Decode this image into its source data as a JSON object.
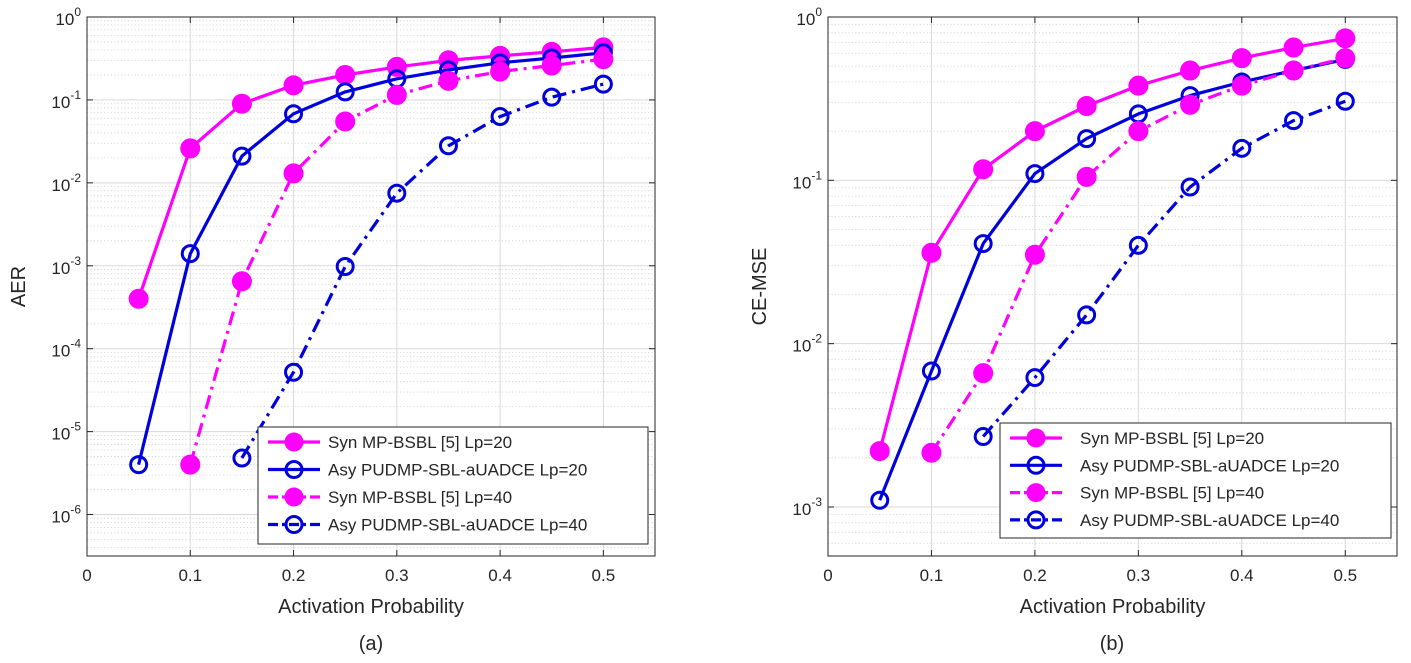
{
  "colors": {
    "magenta": "#ff00ff",
    "blue": "#0000dd",
    "axis": "#262626",
    "grid": "#d9d9d9"
  },
  "chart_data": [
    {
      "type": "line",
      "panel_label": "(a)",
      "xlabel": "Activation Probability",
      "ylabel": "AER",
      "yscale": "log",
      "xlim": [
        0,
        0.55
      ],
      "ylim_exp": [
        -6.5,
        0
      ],
      "xticks": [
        "0",
        "0.1",
        "0.2",
        "0.3",
        "0.4",
        "0.5"
      ],
      "yticks": [
        {
          "base": "10",
          "exp": "0"
        },
        {
          "base": "10",
          "exp": "-1"
        },
        {
          "base": "10",
          "exp": "-2"
        },
        {
          "base": "10",
          "exp": "-3"
        },
        {
          "base": "10",
          "exp": "-4"
        },
        {
          "base": "10",
          "exp": "-5"
        },
        {
          "base": "10",
          "exp": "-6"
        }
      ],
      "legend_position": "bottom-right",
      "series": [
        {
          "name": "Syn MP-BSBL [5] Lp=20",
          "color": "#ff00ff",
          "style": "solid",
          "marker": "filled",
          "x": [
            0.05,
            0.1,
            0.15,
            0.2,
            0.25,
            0.3,
            0.35,
            0.4,
            0.45,
            0.5
          ],
          "y": [
            0.0004,
            0.026,
            0.09,
            0.15,
            0.2,
            0.25,
            0.3,
            0.34,
            0.38,
            0.43
          ]
        },
        {
          "name": "Asy PUDMP-SBL-aUADCE Lp=20",
          "color": "#0000dd",
          "style": "solid",
          "marker": "open",
          "x": [
            0.05,
            0.1,
            0.15,
            0.2,
            0.25,
            0.3,
            0.35,
            0.4,
            0.45,
            0.5
          ],
          "y": [
            4e-06,
            0.0014,
            0.021,
            0.068,
            0.125,
            0.18,
            0.23,
            0.28,
            0.32,
            0.37
          ]
        },
        {
          "name": "Syn MP-BSBL [5] Lp=40",
          "color": "#ff00ff",
          "style": "dashdot",
          "marker": "filled",
          "x": [
            0.1,
            0.15,
            0.2,
            0.25,
            0.3,
            0.35,
            0.4,
            0.45,
            0.5
          ],
          "y": [
            4e-06,
            0.00065,
            0.013,
            0.055,
            0.115,
            0.17,
            0.22,
            0.26,
            0.31
          ]
        },
        {
          "name": "Asy PUDMP-SBL-aUADCE Lp=40",
          "color": "#0000dd",
          "style": "dashdot",
          "marker": "open",
          "x": [
            0.15,
            0.2,
            0.25,
            0.3,
            0.35,
            0.4,
            0.45,
            0.5
          ],
          "y": [
            4.8e-06,
            5.2e-05,
            0.00098,
            0.0075,
            0.028,
            0.063,
            0.108,
            0.155
          ]
        }
      ]
    },
    {
      "type": "line",
      "panel_label": "(b)",
      "xlabel": "Activation Probability",
      "ylabel": "CE-MSE",
      "yscale": "log",
      "xlim": [
        0,
        0.55
      ],
      "ylim_exp": [
        -3.3,
        0
      ],
      "xticks": [
        "0",
        "0.1",
        "0.2",
        "0.3",
        "0.4",
        "0.5"
      ],
      "yticks": [
        {
          "base": "10",
          "exp": "0"
        },
        {
          "base": "10",
          "exp": "-1"
        },
        {
          "base": "10",
          "exp": "-2"
        },
        {
          "base": "10",
          "exp": "-3"
        }
      ],
      "legend_position": "bottom-right",
      "series": [
        {
          "name": "Syn MP-BSBL [5] Lp=20",
          "color": "#ff00ff",
          "style": "solid",
          "marker": "filled",
          "x": [
            0.05,
            0.1,
            0.15,
            0.2,
            0.25,
            0.3,
            0.35,
            0.4,
            0.45,
            0.5
          ],
          "y": [
            0.0022,
            0.036,
            0.117,
            0.2,
            0.285,
            0.38,
            0.47,
            0.56,
            0.65,
            0.74
          ]
        },
        {
          "name": "Asy PUDMP-SBL-aUADCE Lp=20",
          "color": "#0000dd",
          "style": "solid",
          "marker": "open",
          "x": [
            0.05,
            0.1,
            0.15,
            0.2,
            0.25,
            0.3,
            0.35,
            0.4,
            0.45,
            0.5
          ],
          "y": [
            0.0011,
            0.0068,
            0.041,
            0.11,
            0.18,
            0.255,
            0.33,
            0.4,
            0.47,
            0.55
          ]
        },
        {
          "name": "Syn MP-BSBL [5] Lp=40",
          "color": "#ff00ff",
          "style": "dashdot",
          "marker": "filled",
          "x": [
            0.1,
            0.15,
            0.2,
            0.25,
            0.3,
            0.35,
            0.4,
            0.45,
            0.5
          ],
          "y": [
            0.00215,
            0.0066,
            0.035,
            0.105,
            0.2,
            0.29,
            0.38,
            0.47,
            0.56
          ]
        },
        {
          "name": "Asy PUDMP-SBL-aUADCE Lp=40",
          "color": "#0000dd",
          "style": "dashdot",
          "marker": "open",
          "x": [
            0.15,
            0.2,
            0.25,
            0.3,
            0.35,
            0.4,
            0.45,
            0.5
          ],
          "y": [
            0.0027,
            0.0062,
            0.015,
            0.04,
            0.091,
            0.157,
            0.232,
            0.305
          ]
        }
      ]
    }
  ]
}
